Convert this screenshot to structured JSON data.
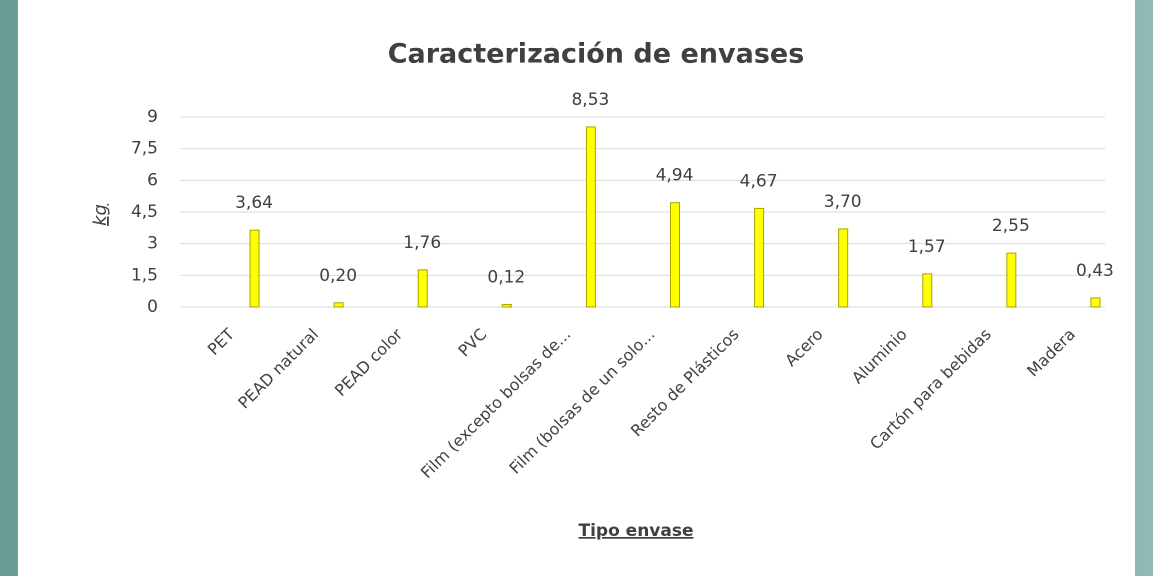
{
  "chart_data": {
    "type": "bar",
    "title": "Caracterización de envases",
    "x_label": "Tipo envase",
    "y_label": "kg",
    "categories": [
      "PET",
      "PEAD natural",
      "PEAD color",
      "PVC",
      "Film (excepto bolsas de...",
      "Film (bolsas de un solo...",
      "Resto de Plásticos",
      "Acero",
      "Aluminio",
      "Cartón para bebidas",
      "Madera"
    ],
    "values": [
      3.64,
      0.2,
      1.76,
      0.12,
      8.53,
      4.94,
      4.67,
      3.7,
      1.57,
      2.55,
      0.43
    ],
    "value_labels": [
      "3,64",
      "0,20",
      "1,76",
      "0,12",
      "8,53",
      "4,94",
      "4,67",
      "3,70",
      "1,57",
      "2,55",
      "0,43"
    ],
    "color": "#ffff00",
    "ylim": [
      0,
      9
    ],
    "yticks": [
      0,
      {
        "value": 1.5,
        "label": "1,5"
      },
      3,
      {
        "value": 4.5,
        "label": "4,5"
      },
      6,
      {
        "value": 7.5,
        "label": "7,5"
      },
      9
    ],
    "grid": true
  }
}
